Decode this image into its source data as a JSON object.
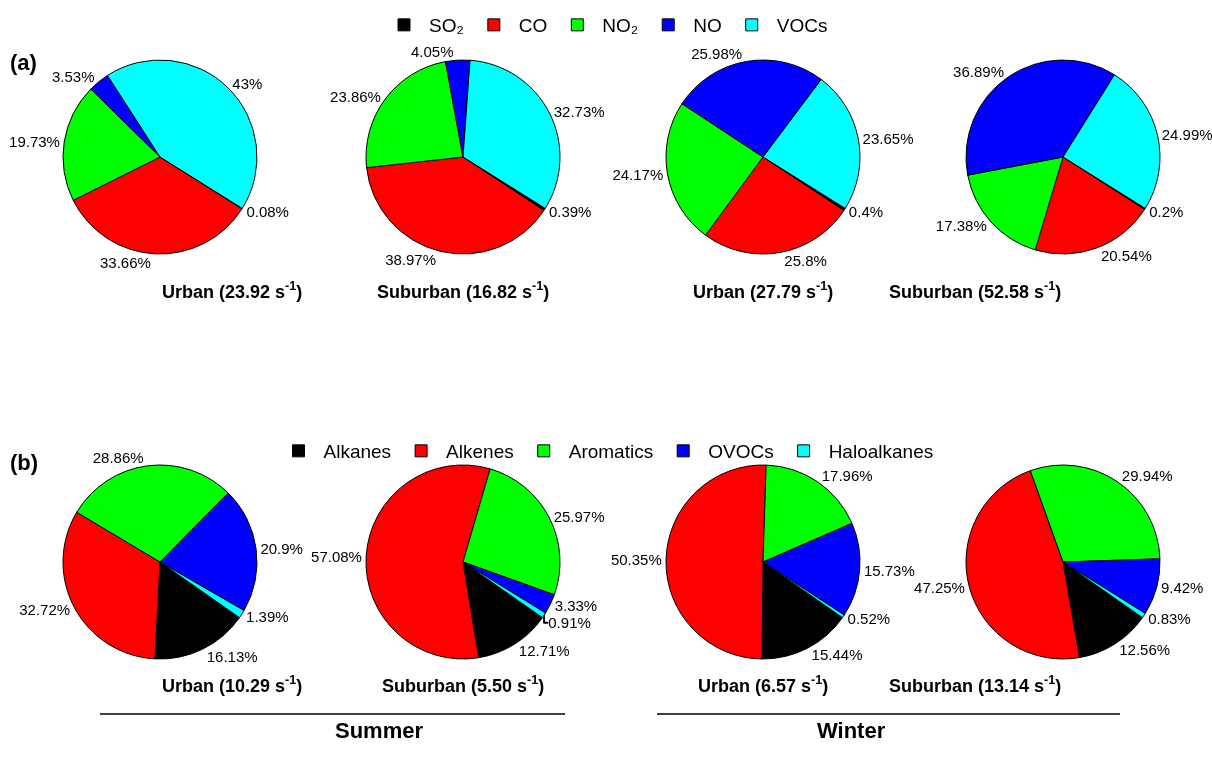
{
  "chart_data": [
    {
      "type": "pie",
      "title": "Urban (23.92 s$^{-1}$)",
      "categories": [
        "SO₂",
        "CO",
        "NO₂",
        "NO",
        "VOCs"
      ],
      "values": [
        0.08,
        33.66,
        19.73,
        3.53,
        43
      ],
      "value_labels": [
        "0.08%",
        "33.66%",
        "19.73%",
        "3.53%",
        "43%"
      ],
      "colors": [
        "#000000",
        "#ff0000",
        "#00ff00",
        "#0000ff",
        "#00ffff"
      ],
      "legend": "top",
      "annotations": [
        "(a)"
      ]
    },
    {
      "type": "pie",
      "title": "Suburban (16.82 s$^{-1}$)",
      "values": [
        0.39,
        38.97,
        23.86,
        4.05,
        32.73
      ],
      "value_labels": [
        "0.39%",
        "38.97%",
        "23.86%",
        "4.05%",
        "32.73%"
      ],
      "colors": [
        "#000000",
        "#ff0000",
        "#00ff00",
        "#0000ff",
        "#00ffff"
      ]
    },
    {
      "type": "pie",
      "title": "Urban (27.79 s$^{-1}$)",
      "values": [
        0.4,
        25.8,
        24.17,
        25.98,
        23.65
      ],
      "value_labels": [
        "0.4%",
        "25.8%",
        "24.17%",
        "25.98%",
        "23.65%"
      ],
      "colors": [
        "#000000",
        "#ff0000",
        "#00ff00",
        "#0000ff",
        "#00ffff"
      ]
    },
    {
      "type": "pie",
      "title": "Suburban (52.58 s$^{-1}$)",
      "values": [
        0.2,
        20.54,
        17.38,
        36.89,
        24.99
      ],
      "value_labels": [
        "0.2%",
        "20.54%",
        "17.38%",
        "36.89%",
        "24.99%"
      ],
      "colors": [
        "#000000",
        "#ff0000",
        "#00ff00",
        "#0000ff",
        "#00ffff"
      ]
    },
    {
      "type": "pie",
      "title": "Urban (10.29 s$^{-1}$)",
      "categories": [
        "Alkanes",
        "Alkenes",
        "Aromatics",
        "OVOCs",
        "Haloalkanes"
      ],
      "values": [
        16.13,
        32.72,
        28.86,
        20.9,
        1.39
      ],
      "value_labels": [
        "16.13%",
        "32.72%",
        "28.86%",
        "20.9%",
        "1.39%"
      ],
      "colors": [
        "#000000",
        "#ff0000",
        "#00ff00",
        "#0000ff",
        "#00ffff"
      ],
      "legend": "top",
      "annotations": [
        "(b)",
        "Summer"
      ]
    },
    {
      "type": "pie",
      "title": "Suburban (5.50 s$^{-1}$)",
      "values": [
        12.71,
        57.08,
        25.97,
        3.33,
        0.91
      ],
      "value_labels": [
        "12.71%",
        "57.08%",
        "25.97%",
        "3.33%",
        "0.91%"
      ],
      "colors": [
        "#000000",
        "#ff0000",
        "#00ff00",
        "#0000ff",
        "#00ffff"
      ]
    },
    {
      "type": "pie",
      "title": "Urban (6.57 s$^{-1}$)",
      "values": [
        15.44,
        50.35,
        17.96,
        15.73,
        0.52
      ],
      "value_labels": [
        "15.44%",
        "50.35%",
        "17.96%",
        "15.73%",
        "0.52%"
      ],
      "colors": [
        "#000000",
        "#ff0000",
        "#00ff00",
        "#0000ff",
        "#00ffff"
      ],
      "annotations": [
        "Winter"
      ]
    },
    {
      "type": "pie",
      "title": "Suburban (13.14 s$^{-1}$)",
      "values": [
        12.56,
        47.25,
        29.94,
        9.42,
        0.83
      ],
      "value_labels": [
        "12.56%",
        "47.25%",
        "29.94%",
        "9.42%",
        "0.83%"
      ],
      "colors": [
        "#000000",
        "#ff0000",
        "#00ff00",
        "#0000ff",
        "#00ffff"
      ]
    }
  ]
}
